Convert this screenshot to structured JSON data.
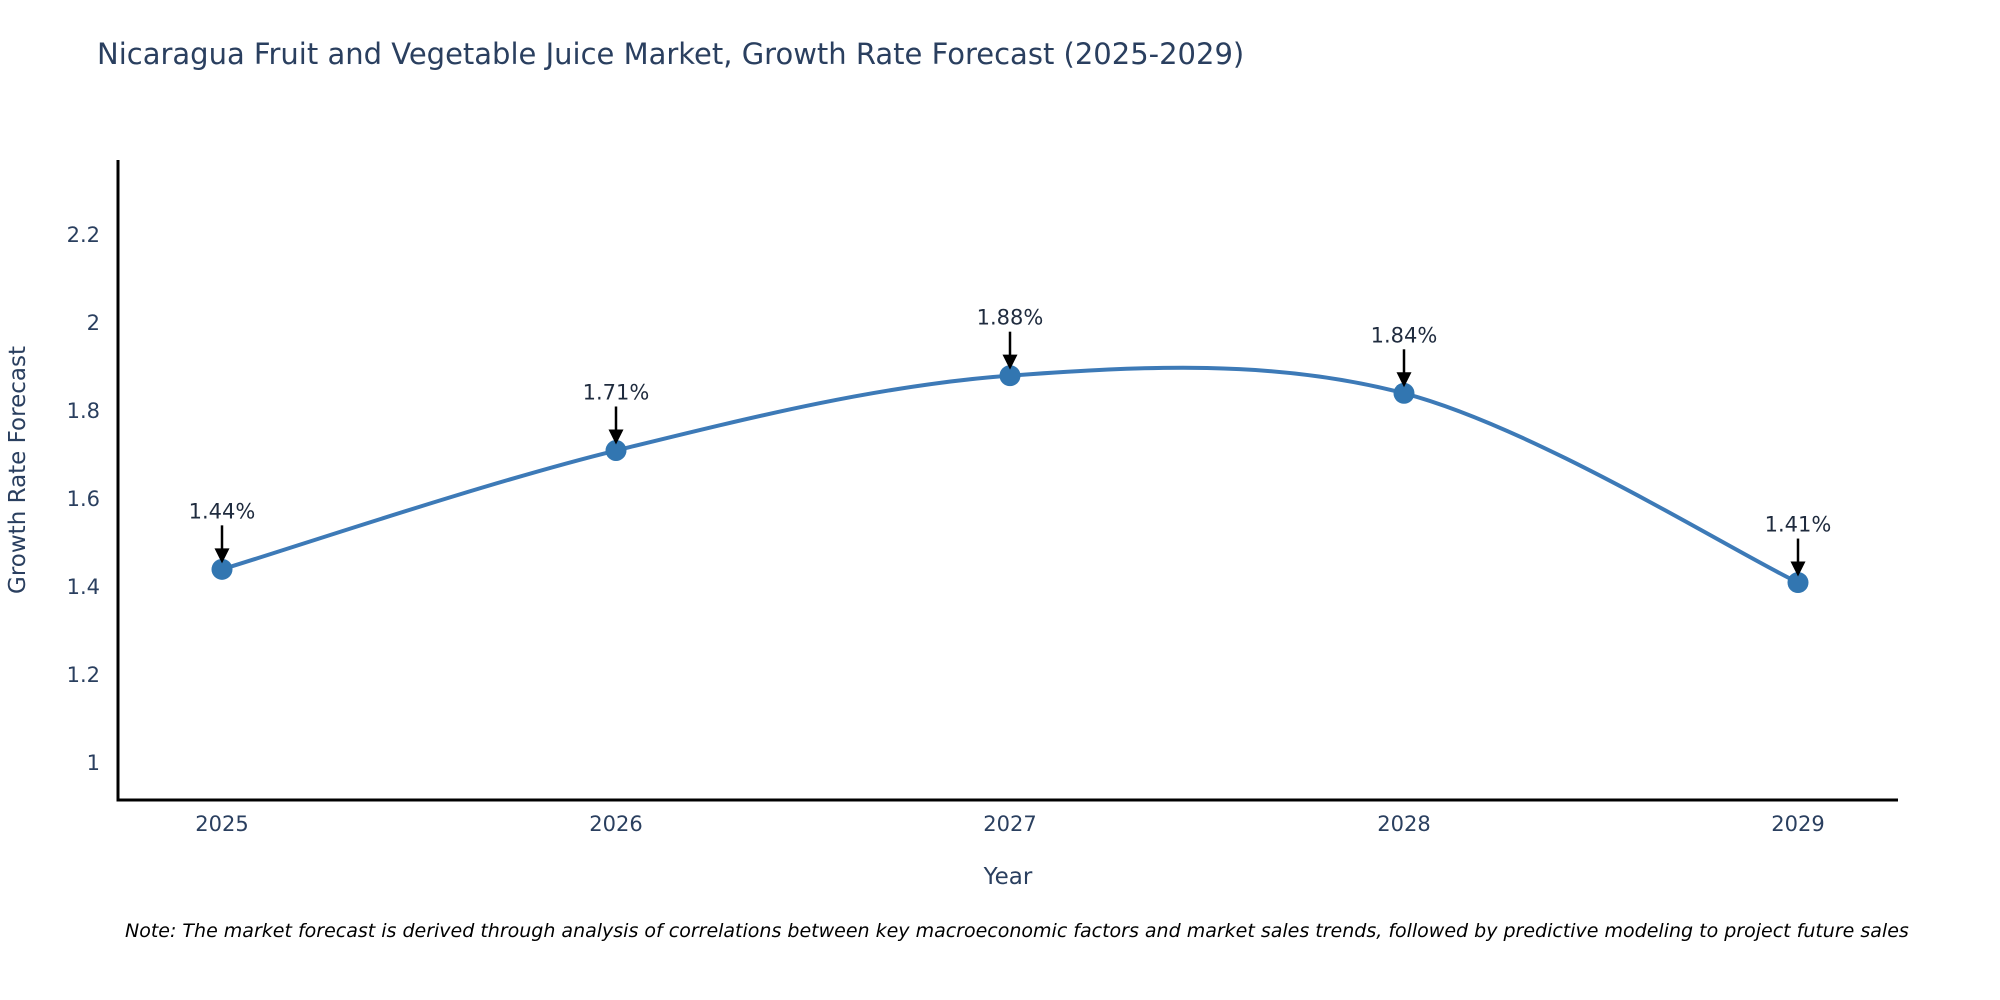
{
  "page": {
    "title": "Nicaragua Fruit and Vegetable Juice Market, Growth Rate Forecast (2025-2029)",
    "note": "Note: The market forecast is derived through analysis of correlations between key macroeconomic factors and market sales trends, followed by predictive modeling to project future sales"
  },
  "chart_data": {
    "type": "line",
    "title": "Nicaragua Fruit and Vegetable Juice Market, Growth Rate Forecast (2025-2029)",
    "xlabel": "Year",
    "ylabel": "Growth Rate Forecast",
    "categories": [
      "2025",
      "2026",
      "2027",
      "2028",
      "2029"
    ],
    "series": [
      {
        "name": "Growth Rate Forecast",
        "values": [
          1.44,
          1.71,
          1.88,
          1.84,
          1.41
        ],
        "point_labels": [
          "1.44%",
          "1.71%",
          "1.88%",
          "1.84%",
          "1.41%"
        ]
      }
    ],
    "line_shape": "spline",
    "grid": false,
    "legend_position": "none",
    "ytick_labels": [
      "2.2",
      "2",
      "1.8",
      "1.6",
      "1.4",
      "1.2",
      "1"
    ],
    "ytick_values": [
      2.2,
      2.0,
      1.8,
      1.6,
      1.4,
      1.2,
      1.0
    ],
    "ylim": [
      0.916,
      2.37
    ],
    "colors": {
      "line": "#3d7ab7",
      "marker": "#3276b1",
      "axis": "#000000",
      "tick_text": "#2a3f5f",
      "annotation_text": "#1f2b3e",
      "arrow": "#000000"
    }
  }
}
